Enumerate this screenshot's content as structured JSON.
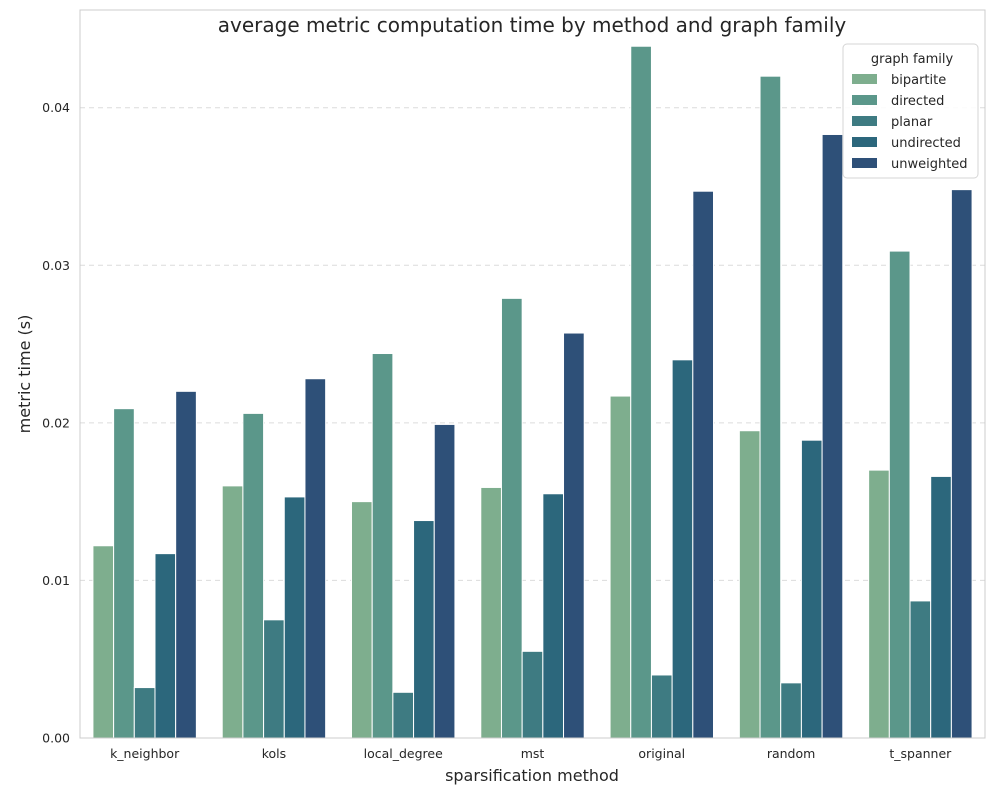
{
  "chart_data": {
    "type": "bar",
    "title": "average metric computation time by method and graph family",
    "xlabel": "sparsification method",
    "ylabel": "metric time (s)",
    "ylim": [
      0,
      0.0462
    ],
    "yticks": [
      0.0,
      0.01,
      0.02,
      0.03,
      0.04
    ],
    "ytick_labels": [
      "0.00",
      "0.01",
      "0.02",
      "0.03",
      "0.04"
    ],
    "grid": true,
    "legend": {
      "title": "graph family",
      "placement": "top-right"
    },
    "categories": [
      "k_neighbor",
      "kols",
      "local_degree",
      "mst",
      "original",
      "random",
      "t_spanner"
    ],
    "series": [
      {
        "name": "bipartite",
        "color": "#7eae8e",
        "values": [
          0.0122,
          0.016,
          0.015,
          0.0159,
          0.0217,
          0.0195,
          0.017
        ]
      },
      {
        "name": "directed",
        "color": "#5b978a",
        "values": [
          0.0209,
          0.0206,
          0.0244,
          0.0279,
          0.0439,
          0.042,
          0.0309
        ]
      },
      {
        "name": "planar",
        "color": "#3e7b82",
        "values": [
          0.0032,
          0.0075,
          0.0029,
          0.0055,
          0.004,
          0.0035,
          0.0087
        ]
      },
      {
        "name": "undirected",
        "color": "#2c677c",
        "values": [
          0.0117,
          0.0153,
          0.0138,
          0.0155,
          0.024,
          0.0189,
          0.0166
        ]
      },
      {
        "name": "unweighted",
        "color": "#2e5078",
        "values": [
          0.022,
          0.0228,
          0.0199,
          0.0257,
          0.0347,
          0.0383,
          0.0348
        ]
      }
    ]
  }
}
